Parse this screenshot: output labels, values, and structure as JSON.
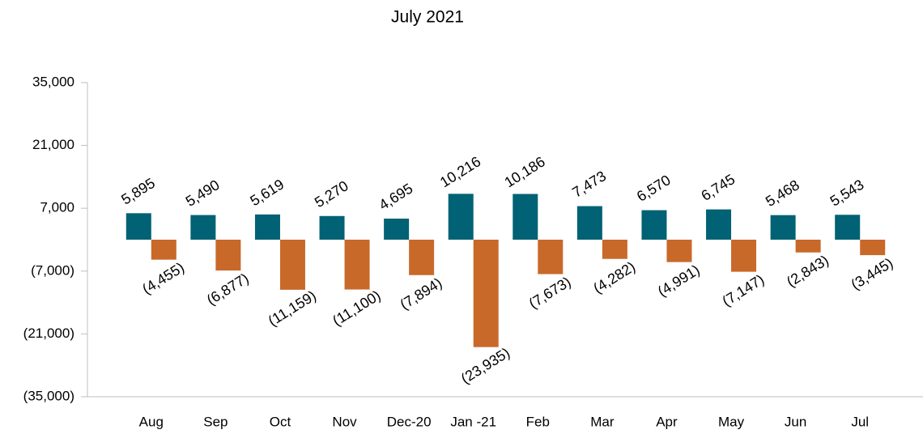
{
  "chart_data": {
    "type": "bar",
    "title": "July 2021",
    "categories": [
      "Aug",
      "Sep",
      "Oct",
      "Nov",
      "Dec-20",
      "Jan -21",
      "Feb",
      "Mar",
      "Apr",
      "May",
      "Jun",
      "Jul"
    ],
    "series": [
      {
        "color": "#006274",
        "values": [
          5895,
          5490,
          5619,
          5270,
          4695,
          10216,
          10186,
          7473,
          6570,
          6745,
          5468,
          5543
        ],
        "value_labels": [
          "5,895",
          "5,490",
          "5,619",
          "5,270",
          "4,695",
          "10,216",
          "10,186",
          "7,473",
          "6,570",
          "6,745",
          "5,468",
          "5,543"
        ]
      },
      {
        "color": "#c8692a",
        "values": [
          -4455,
          -6877,
          -11159,
          -11100,
          -7894,
          -23935,
          -7673,
          -4282,
          -4991,
          -7147,
          -2843,
          -3445
        ],
        "value_labels": [
          "(4,455)",
          "(6,877)",
          "(11,159)",
          "(11,100)",
          "(7,894)",
          "(23,935)",
          "(7,673)",
          "(4,282)",
          "(4,991)",
          "(7,147)",
          "(2,843)",
          "(3,445)"
        ]
      }
    ],
    "ylim": [
      -35000,
      35000
    ],
    "yticks": [
      {
        "value": -35000,
        "label": "(35,000)"
      },
      {
        "value": -21000,
        "label": "(21,000)"
      },
      {
        "value": -7000,
        "label": "(7,000)"
      },
      {
        "value": 7000,
        "label": "7,000"
      },
      {
        "value": 21000,
        "label": "21,000"
      },
      {
        "value": 35000,
        "label": "35,000"
      }
    ]
  }
}
